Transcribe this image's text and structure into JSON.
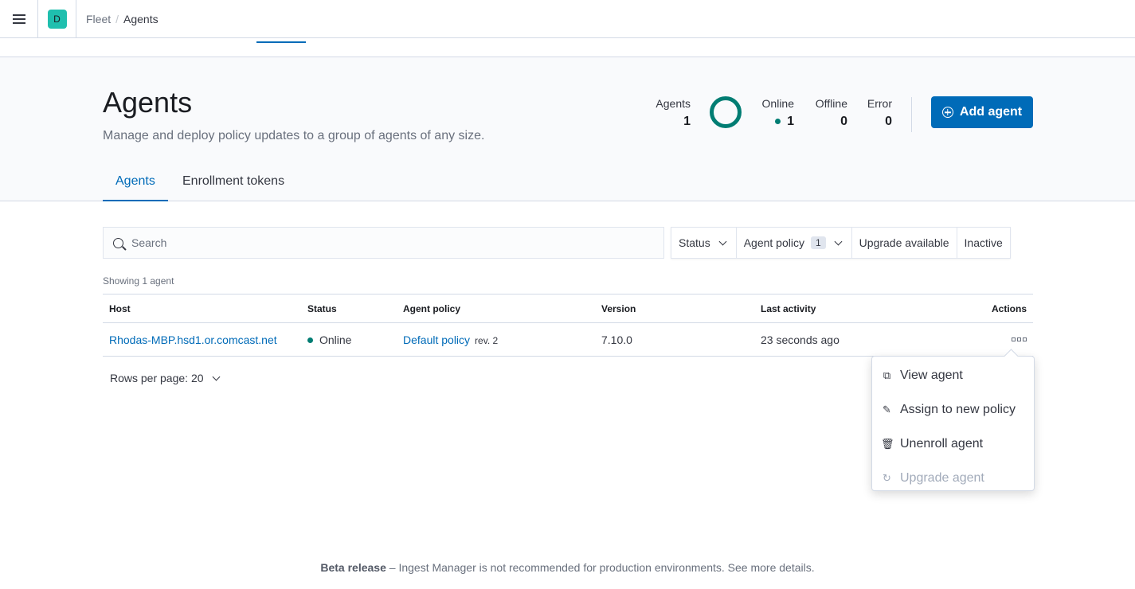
{
  "header": {
    "space_initial": "D",
    "breadcrumbs": [
      "Fleet",
      "Agents"
    ],
    "separator": "/"
  },
  "page": {
    "title": "Agents",
    "description": "Manage and deploy policy updates to a group of agents of any size."
  },
  "stats": {
    "agents_label": "Agents",
    "agents": "1",
    "online_label": "Online",
    "online": "1",
    "offline_label": "Offline",
    "offline": "0",
    "error_label": "Error",
    "error": "0",
    "online_color": "#017d73"
  },
  "add_agent": "Add agent",
  "tabs": [
    {
      "label": "Agents",
      "active": true
    },
    {
      "label": "Enrollment tokens",
      "active": false
    }
  ],
  "search": {
    "placeholder": "Search"
  },
  "filters": {
    "status": "Status",
    "agent_policy": "Agent policy",
    "agent_policy_count": "1",
    "upgrade": "Upgrade available",
    "inactive": "Inactive"
  },
  "showing": "Showing 1 agent",
  "table": {
    "columns": [
      "Host",
      "Status",
      "Agent policy",
      "Version",
      "Last activity",
      "Actions"
    ],
    "rows": [
      {
        "host": "Rhodas-MBP.hsd1.or.comcast.net",
        "status": "Online",
        "policy": "Default policy",
        "rev": "rev. 2",
        "version": "7.10.0",
        "last_activity": "23 seconds ago"
      }
    ]
  },
  "rows_per_page": "Rows per page: 20",
  "menu": {
    "items": [
      {
        "label": "View agent",
        "icon": "inspect-icon"
      },
      {
        "label": "Assign to new policy",
        "icon": "pencil-icon"
      },
      {
        "label": "Unenroll agent",
        "icon": "trash-icon"
      },
      {
        "label": "Upgrade agent",
        "icon": "refresh-icon",
        "disabled": true
      }
    ]
  },
  "footer": {
    "bold": "Beta release",
    "text": " – Ingest Manager is not recommended for production environments. See more details."
  }
}
